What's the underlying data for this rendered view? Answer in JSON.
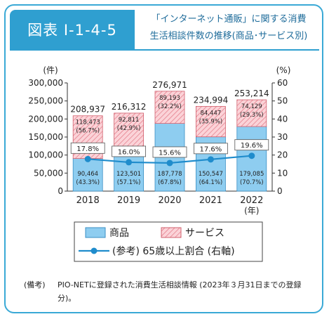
{
  "header": {
    "figure_id": "図表 I-1-4-5",
    "title_line1": "「インターネット通販」に関する消費",
    "title_line2": "生活相談件数の推移(商品･サービス別)"
  },
  "chart_data": {
    "type": "bar",
    "stacked": true,
    "categories": [
      "2018",
      "2019",
      "2020",
      "2021",
      "2022"
    ],
    "x_unit_label": "(年)",
    "left_axis": {
      "unit_label": "(件)",
      "ylim": [
        0,
        300000
      ],
      "ticks": [
        "0",
        "50,000",
        "100,000",
        "150,000",
        "200,000",
        "250,000",
        "300,000"
      ]
    },
    "right_axis": {
      "unit_label": "(%)",
      "ylim": [
        0,
        60
      ],
      "ticks": [
        "0",
        "10",
        "20",
        "30",
        "40",
        "50",
        "60"
      ]
    },
    "totals": [
      208937,
      216312,
      276971,
      234994,
      253214
    ],
    "totals_labels": [
      "208,937",
      "216,312",
      "276,971",
      "234,994",
      "253,214"
    ],
    "series": [
      {
        "name": "商品",
        "values": [
          90464,
          123501,
          187778,
          150547,
          179085
        ],
        "value_labels": [
          "90,464",
          "123,501",
          "187,778",
          "150,547",
          "179,085"
        ],
        "pct_labels": [
          "(43.3%)",
          "(57.1%)",
          "(67.8%)",
          "(64.1%)",
          "(70.7%)"
        ],
        "color": "#8ecdf0"
      },
      {
        "name": "サービス",
        "values": [
          118473,
          92811,
          89193,
          84447,
          74129
        ],
        "value_labels": [
          "118,473",
          "92,811",
          "89,193",
          "84,447",
          "74,129"
        ],
        "pct_labels": [
          "(56.7%)",
          "(42.9%)",
          "(32.2%)",
          "(35.9%)",
          "(29.3%)"
        ],
        "color": "#f6b8bf"
      },
      {
        "name": "(参考) 65歳以上割合 (右軸)",
        "type": "line",
        "axis": "right",
        "values": [
          17.8,
          16.0,
          15.6,
          17.6,
          19.6
        ],
        "value_labels": [
          "17.8%",
          "16.0%",
          "15.6%",
          "17.6%",
          "19.6%"
        ],
        "color": "#1f8ccc"
      }
    ],
    "legend": {
      "placement": "bottom",
      "items": [
        "商品",
        "サービス",
        "(参考) 65歳以上割合 (右軸)"
      ]
    }
  },
  "note": {
    "label": "(備考)",
    "text": "PIO-NETに登録された消費生活相談情報 (2023年３月31日までの登録分)。"
  }
}
